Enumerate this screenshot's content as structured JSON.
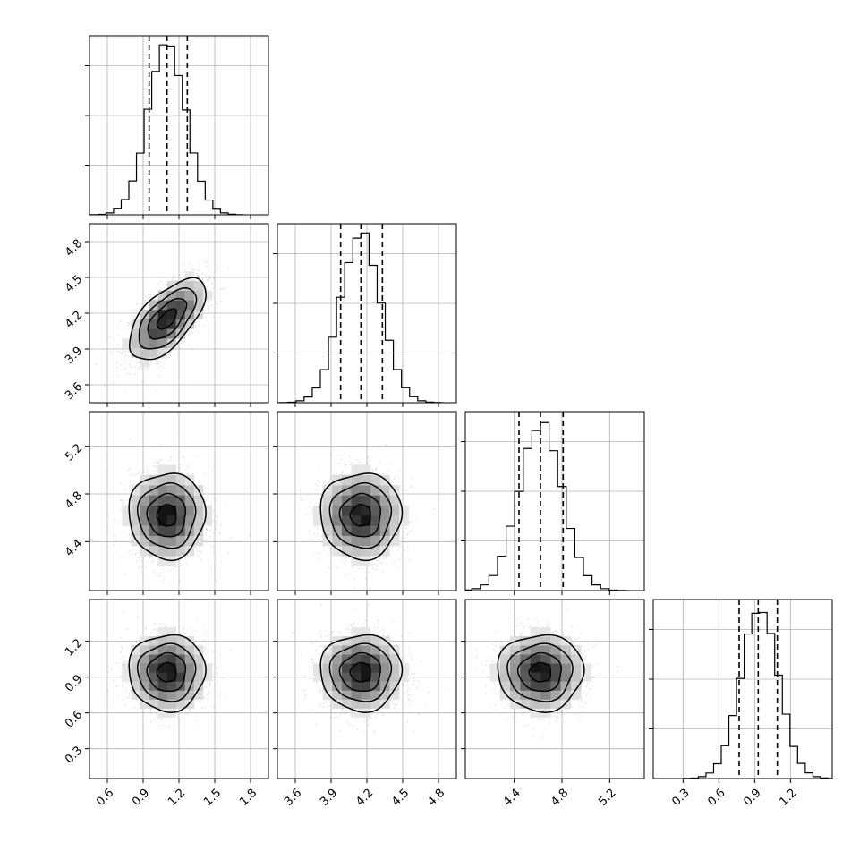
{
  "chart_data": {
    "type": "corner",
    "grid": true,
    "parameters": [
      {
        "xlim": [
          0.45,
          1.95
        ],
        "ticks": [
          0.6,
          0.9,
          1.2,
          1.5,
          1.8
        ],
        "mean": 1.1,
        "sd": 0.16,
        "q16": 0.95,
        "q50": 1.1,
        "q84": 1.27
      },
      {
        "xlim": [
          3.45,
          4.95
        ],
        "ticks": [
          3.6,
          3.9,
          4.2,
          4.5,
          4.8
        ],
        "mean": 4.15,
        "sd": 0.17,
        "q16": 3.98,
        "q50": 4.15,
        "q84": 4.33
      },
      {
        "xlim": [
          3.99,
          5.49
        ],
        "ticks": [
          4.4,
          4.8,
          5.2
        ],
        "mean": 4.62,
        "sd": 0.18,
        "q16": 4.44,
        "q50": 4.62,
        "q84": 4.81
      },
      {
        "xlim": [
          0.05,
          1.55
        ],
        "ticks": [
          0.3,
          0.6,
          0.9,
          1.2
        ],
        "mean": 0.94,
        "sd": 0.16,
        "q16": 0.77,
        "q50": 0.93,
        "q84": 1.09
      }
    ],
    "correlations": [
      [
        1,
        0.62,
        0,
        0
      ],
      [
        0.62,
        1,
        0,
        0
      ],
      [
        0,
        0,
        1,
        0
      ],
      [
        0,
        0,
        0,
        1
      ]
    ],
    "hist_max_counts": [
      3.4,
      3.4,
      3.4,
      3.4
    ],
    "hist_yticks": [
      1,
      2,
      3
    ]
  }
}
